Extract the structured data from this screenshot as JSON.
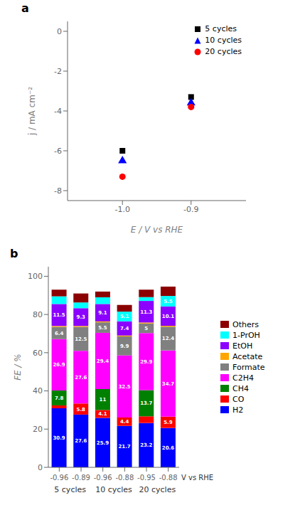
{
  "chart_data": [
    {
      "type": "scatter",
      "title": "a",
      "x_label": "E / V vs RHE",
      "y_label": "j / mA cm⁻²",
      "xlim": [
        -1.08,
        -0.82
      ],
      "ylim": [
        -8.5,
        0.5
      ],
      "xticks": [
        {
          "value": -1.0,
          "label": "-1.0"
        },
        -0.9
      ],
      "yticks": [
        0,
        -2,
        -4,
        -6,
        -8
      ],
      "grid": false,
      "legend": "upper right",
      "series": [
        {
          "name": "5 cycles",
          "color": "black",
          "marker": "square",
          "x": [
            -1.0,
            -0.9
          ],
          "values": [
            -6.0,
            -3.3
          ]
        },
        {
          "name": "10 cycles",
          "color": "blue",
          "marker": "triangle",
          "x": [
            -1.0,
            -0.9
          ],
          "values": [
            -6.5,
            -3.6
          ]
        },
        {
          "name": "20 cycles",
          "color": "red",
          "marker": "circle",
          "x": [
            -1.0,
            -0.9
          ],
          "values": [
            -7.3,
            -3.8
          ]
        }
      ]
    },
    {
      "type": "bar",
      "title": "b",
      "stacked": true,
      "data_labels": true,
      "grid": false,
      "legend": "right",
      "x_label": "V vs RHE",
      "y_label": "FE / %",
      "categories": [
        "-0.96",
        "-0.89",
        "-0.96",
        "-0.88",
        "-0.95",
        "-0.88"
      ],
      "group_labels": [
        "5 cycles",
        "10 cycles",
        "20 cycles"
      ],
      "ylim": [
        0,
        105
      ],
      "yticks": [
        0,
        20,
        40,
        60,
        80,
        100
      ],
      "series": [
        {
          "name": "H2",
          "color": "#0000ff",
          "values": [
            30.9,
            27.6,
            25.9,
            21.7,
            23.2,
            20.6
          ],
          "value_labels": [
            "30.9",
            "27.6",
            "25.9",
            "21.7",
            "23.2",
            "20.6"
          ]
        },
        {
          "name": "CO",
          "color": "#ff0000",
          "values": [
            1.5,
            5.8,
            4.1,
            4.4,
            3.5,
            5.9
          ],
          "value_labels": [
            null,
            "5.8",
            "4.1",
            "4.4",
            null,
            "5.9"
          ]
        },
        {
          "name": "CH4",
          "color": "#008000",
          "values": [
            7.8,
            0.0,
            11.0,
            0.0,
            13.7,
            0.0
          ],
          "value_labels": [
            "7.8",
            null,
            "11",
            null,
            "13.7",
            null
          ]
        },
        {
          "name": "C2H4",
          "color": "#ff00ff",
          "values": [
            26.9,
            27.6,
            29.4,
            32.5,
            29.9,
            34.7
          ],
          "value_labels": [
            "26.9",
            "27.6",
            "29.4",
            "32.5",
            "29.9",
            "34.7"
          ]
        },
        {
          "name": "Formate",
          "color": "#808080",
          "values": [
            6.4,
            12.5,
            5.5,
            9.9,
            5.0,
            12.4
          ],
          "value_labels": [
            "6.4",
            "12.5",
            "5.5",
            "9.9",
            "5",
            "12.4"
          ]
        },
        {
          "name": "Acetate",
          "color": "#ffa500",
          "values": [
            0.5,
            0.5,
            0.5,
            0.5,
            0.5,
            0.5
          ]
        },
        {
          "name": "EtOH",
          "color": "#8b00ff",
          "values": [
            11.5,
            9.3,
            9.1,
            7.4,
            11.3,
            10.1
          ],
          "value_labels": [
            "11.5",
            "9.3",
            "9.1",
            "7.4",
            "11.3",
            "10.1"
          ]
        },
        {
          "name": "1-PrOH",
          "color": "#00ffff",
          "values": [
            4.0,
            3.0,
            3.5,
            5.1,
            2.0,
            5.5
          ],
          "value_labels": [
            null,
            null,
            null,
            "5.1",
            null,
            "5.5"
          ]
        },
        {
          "name": "Others",
          "color": "#8b0000",
          "values": [
            3.5,
            4.7,
            3.0,
            3.5,
            3.9,
            4.9
          ]
        }
      ]
    }
  ]
}
